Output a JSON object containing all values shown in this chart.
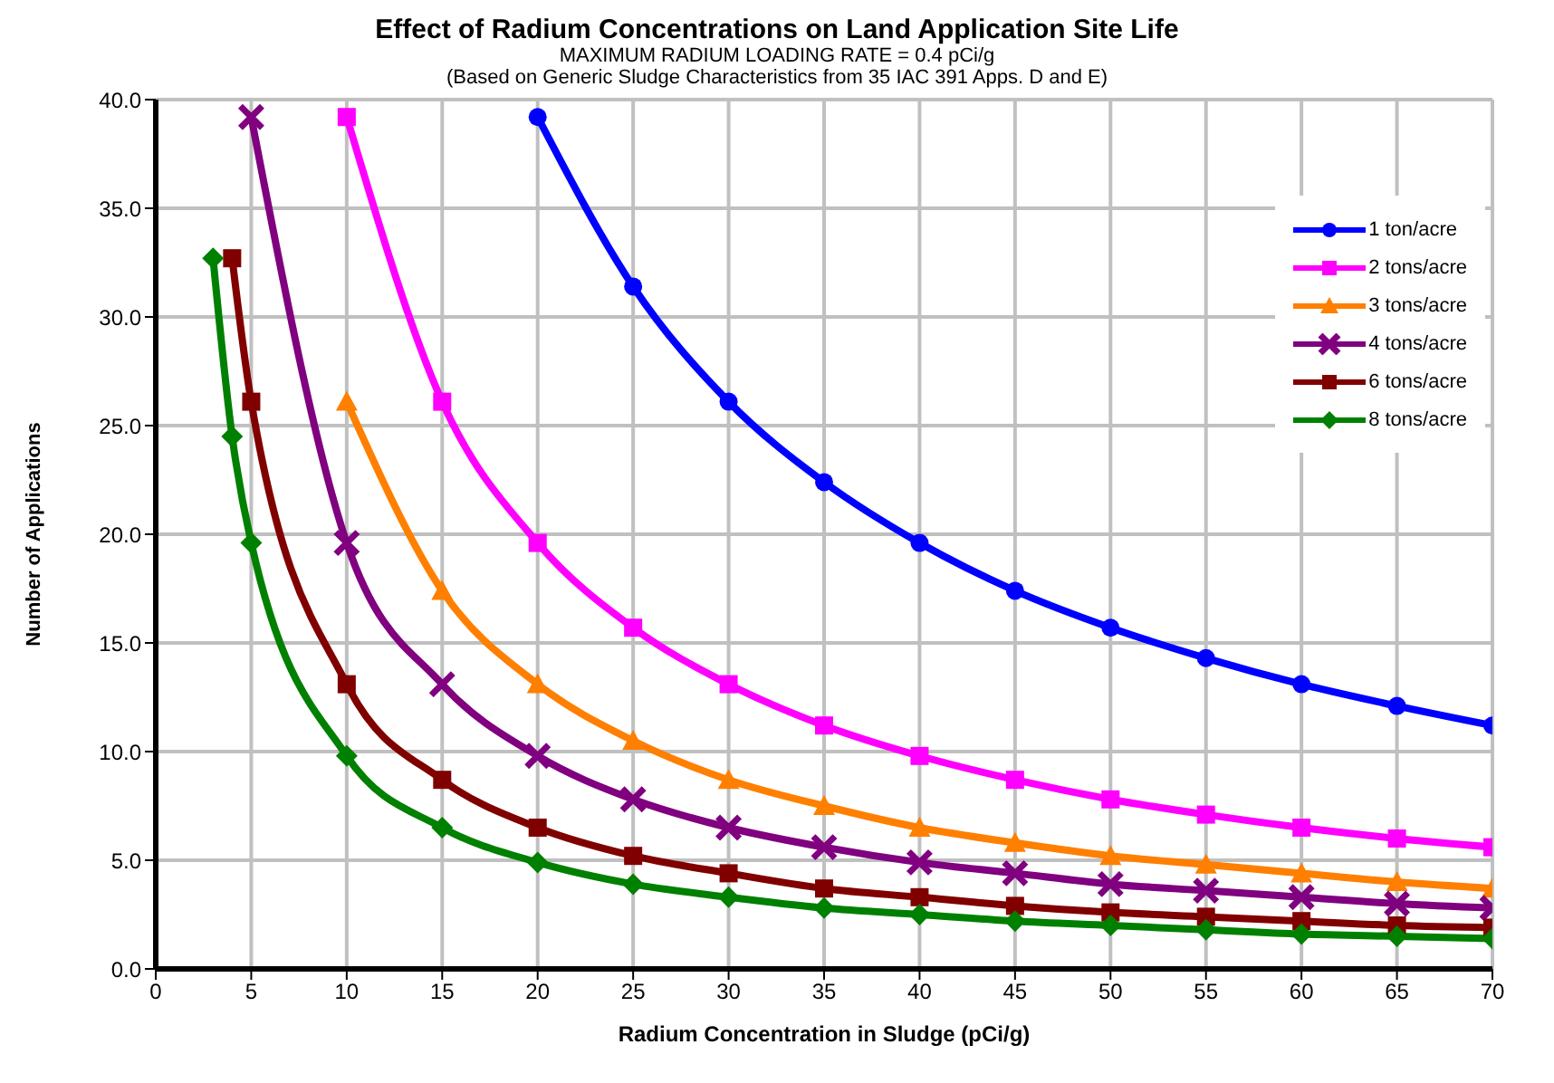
{
  "chart_data": {
    "type": "line",
    "title": "Effect of Radium Concentrations on Land Application Site Life",
    "subtitle": "MAXIMUM RADIUM LOADING RATE = 0.4 pCi/g",
    "annotations": [
      "(Based on Generic Sludge Characteristics from 35 IAC 391 Apps. D and E)"
    ],
    "xlabel": "Radium Concentration in Sludge (pCi/g)",
    "ylabel": "Number of Applications",
    "xlim": [
      0,
      70
    ],
    "xticks": [
      0,
      5,
      10,
      15,
      20,
      25,
      30,
      35,
      40,
      45,
      50,
      55,
      60,
      65,
      70
    ],
    "ylim": [
      0,
      40
    ],
    "yticks": [
      {
        "value": 0,
        "label": "0.0"
      },
      {
        "value": 5,
        "label": "5.0"
      },
      {
        "value": 10,
        "label": "10.0"
      },
      {
        "value": 15,
        "label": "15.0"
      },
      {
        "value": 20,
        "label": "20.0"
      },
      {
        "value": 25,
        "label": "25.0"
      },
      {
        "value": 30,
        "label": "30.0"
      },
      {
        "value": 35,
        "label": "35.0"
      },
      {
        "value": 40,
        "label": "40.0"
      }
    ],
    "grid": true,
    "legend": "top right",
    "line_style": "solid",
    "series": [
      {
        "name": "1 ton/acre",
        "color": "#0000ff",
        "marker": "circle",
        "x": [
          20,
          25,
          30,
          35,
          40,
          45,
          50,
          55,
          60,
          65,
          70
        ],
        "values": [
          39.2,
          31.4,
          26.1,
          22.4,
          19.6,
          17.4,
          15.7,
          14.3,
          13.1,
          12.1,
          11.2
        ]
      },
      {
        "name": "2 tons/acre",
        "color": "#ff00ff",
        "marker": "square",
        "x": [
          10,
          15,
          20,
          25,
          30,
          35,
          40,
          45,
          50,
          55,
          60,
          65,
          70
        ],
        "values": [
          39.2,
          26.1,
          19.6,
          15.7,
          13.1,
          11.2,
          9.8,
          8.7,
          7.8,
          7.1,
          6.5,
          6.0,
          5.6
        ]
      },
      {
        "name": "3 tons/acre",
        "color": "#ff7f00",
        "marker": "triangle",
        "x": [
          10,
          15,
          20,
          25,
          30,
          35,
          40,
          45,
          50,
          55,
          60,
          65,
          70
        ],
        "values": [
          26.1,
          17.4,
          13.1,
          10.5,
          8.7,
          7.5,
          6.5,
          5.8,
          5.2,
          4.8,
          4.4,
          4.0,
          3.7
        ]
      },
      {
        "name": "4 tons/acre",
        "color": "#800080",
        "marker": "cross",
        "x": [
          5,
          10,
          15,
          20,
          25,
          30,
          35,
          40,
          45,
          50,
          55,
          60,
          65,
          70
        ],
        "values": [
          39.2,
          19.6,
          13.1,
          9.8,
          7.8,
          6.5,
          5.6,
          4.9,
          4.4,
          3.9,
          3.6,
          3.3,
          3.0,
          2.8
        ]
      },
      {
        "name": "6 tons/acre",
        "color": "#800000",
        "marker": "square",
        "x": [
          4,
          5,
          10,
          15,
          20,
          25,
          30,
          35,
          40,
          45,
          50,
          55,
          60,
          65,
          70
        ],
        "values": [
          32.7,
          26.1,
          13.1,
          8.7,
          6.5,
          5.2,
          4.4,
          3.7,
          3.3,
          2.9,
          2.6,
          2.4,
          2.2,
          2.0,
          1.9
        ]
      },
      {
        "name": "8 tons/acre",
        "color": "#008000",
        "marker": "diamond",
        "x": [
          3,
          4,
          5,
          10,
          15,
          20,
          25,
          30,
          35,
          40,
          45,
          50,
          55,
          60,
          65,
          70
        ],
        "values": [
          32.7,
          24.5,
          19.6,
          9.8,
          6.5,
          4.9,
          3.9,
          3.3,
          2.8,
          2.5,
          2.2,
          2.0,
          1.8,
          1.6,
          1.5,
          1.4
        ]
      }
    ]
  }
}
